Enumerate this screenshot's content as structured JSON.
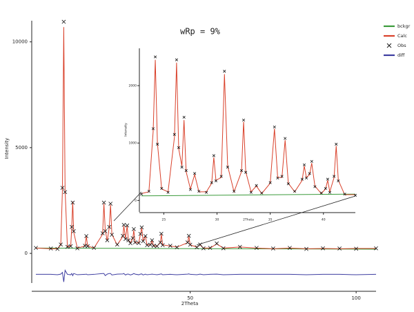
{
  "chart_data": [
    {
      "type": "line",
      "title": "wRp = 9%",
      "x_label": "2Theta",
      "y_label": "Intensity",
      "xlim": [
        3.5,
        106
      ],
      "ylim": [
        -1400,
        11000
      ],
      "xticks": [
        50,
        100
      ],
      "yticks": [
        0,
        5000,
        10000
      ],
      "legend": "upper right",
      "x": [
        3.5,
        8,
        10,
        11,
        11.5,
        11.9,
        12.3,
        13,
        14,
        14.3,
        14.6,
        14.9,
        16,
        18.3,
        18.7,
        19.1,
        21,
        23.6,
        24,
        24.4,
        25,
        25.6,
        26,
        26.4,
        28,
        29.7,
        30,
        30.5,
        31,
        31.4,
        32,
        32.7,
        33,
        33.4,
        34.5,
        35,
        35.4,
        35.8,
        36.5,
        37,
        38,
        38.5,
        39,
        40,
        41,
        41.3,
        41.7,
        44,
        46,
        49.2,
        49.6,
        50,
        52,
        53,
        54,
        56,
        58,
        60,
        65,
        70,
        75,
        80,
        85,
        90,
        95,
        100,
        106
      ],
      "series": [
        {
          "name": "bckgr",
          "color": "#3a9a3a",
          "mode": "lines",
          "x": [
            3.5,
            106
          ],
          "values": [
            250,
            200
          ]
        },
        {
          "name": "Calc",
          "color": "#d9402a",
          "mode": "lines",
          "values": [
            250,
            220,
            220,
            400,
            3000,
            10700,
            3000,
            300,
            350,
            1200,
            2450,
            1000,
            250,
            350,
            800,
            350,
            250,
            900,
            2350,
            1100,
            600,
            1200,
            2300,
            900,
            400,
            800,
            1300,
            700,
            1300,
            600,
            500,
            700,
            1100,
            500,
            500,
            900,
            1200,
            600,
            800,
            400,
            400,
            600,
            350,
            350,
            500,
            900,
            400,
            350,
            300,
            500,
            800,
            400,
            300,
            400,
            250,
            250,
            450,
            250,
            300,
            250,
            220,
            250,
            220,
            230,
            220,
            230,
            230
          ]
        },
        {
          "name": "Obs",
          "color": "#111111",
          "mode": "markers",
          "values": [
            260,
            230,
            210,
            420,
            3100,
            10950,
            2900,
            310,
            340,
            1250,
            2400,
            1050,
            240,
            360,
            820,
            340,
            260,
            950,
            2400,
            1050,
            620,
            1250,
            2350,
            880,
            420,
            830,
            1350,
            680,
            1320,
            620,
            480,
            720,
            1150,
            520,
            490,
            920,
            1230,
            580,
            820,
            390,
            410,
            620,
            360,
            340,
            520,
            930,
            390,
            360,
            290,
            520,
            830,
            410,
            290,
            420,
            240,
            260,
            470,
            240,
            310,
            260,
            230,
            260,
            210,
            240,
            230,
            220,
            240
          ]
        },
        {
          "name": "diff",
          "color": "#3c3ca0",
          "mode": "lines",
          "values": [
            -990,
            -990,
            -1010,
            -980,
            -900,
            -1350,
            -800,
            -990,
            -1010,
            -950,
            -1050,
            -950,
            -1010,
            -990,
            -980,
            -1010,
            -990,
            -950,
            -950,
            -1050,
            -980,
            -950,
            -950,
            -1020,
            -980,
            -970,
            -950,
            -1020,
            -980,
            -980,
            -1020,
            -980,
            -950,
            -980,
            -1010,
            -980,
            -970,
            -1020,
            -980,
            -1010,
            -990,
            -980,
            -990,
            -1010,
            -980,
            -970,
            -1010,
            -990,
            -1010,
            -980,
            -970,
            -990,
            -1010,
            -980,
            -1010,
            -990,
            -980,
            -1010,
            -990,
            -990,
            -990,
            -990,
            -1010,
            -990,
            -990,
            -1010,
            -990
          ]
        }
      ]
    },
    {
      "type": "line",
      "x_label": "2Theta",
      "y_label": "Intensity",
      "xlim": [
        22.9,
        43
      ],
      "ylim": [
        -200,
        2650
      ],
      "xticks": [
        25,
        30,
        35,
        40
      ],
      "yticks": [
        0,
        1000,
        2000
      ],
      "x": [
        22.9,
        23.6,
        24.0,
        24.2,
        24.4,
        24.8,
        25.4,
        26.0,
        26.2,
        26.4,
        26.7,
        26.9,
        27.1,
        27.5,
        27.9,
        28.3,
        29.0,
        29.5,
        29.7,
        29.9,
        30.4,
        30.7,
        31.0,
        31.6,
        32.3,
        32.5,
        32.7,
        33.2,
        33.7,
        34.2,
        35.0,
        35.4,
        35.7,
        36.1,
        36.4,
        36.7,
        37.3,
        38.0,
        38.2,
        38.4,
        38.7,
        38.9,
        39.2,
        39.8,
        40.2,
        40.4,
        40.6,
        41.0,
        41.2,
        41.4,
        42.0,
        43.0
      ],
      "series": [
        {
          "color": "#3a9a3a",
          "mode": "lines",
          "x": [
            22.9,
            43
          ],
          "values": [
            80,
            110
          ]
        },
        {
          "color": "#d9402a",
          "mode": "lines",
          "values": [
            120,
            150,
            1200,
            2450,
            1000,
            200,
            150,
            1100,
            2400,
            900,
            600,
            1400,
            500,
            200,
            450,
            150,
            150,
            300,
            750,
            350,
            400,
            2200,
            600,
            150,
            500,
            1370,
            500,
            150,
            250,
            120,
            300,
            1250,
            400,
            400,
            1050,
            300,
            150,
            350,
            600,
            400,
            450,
            650,
            250,
            120,
            200,
            350,
            150,
            400,
            950,
            350,
            100,
            100
          ]
        },
        {
          "color": "#111111",
          "mode": "markers",
          "values": [
            110,
            160,
            1250,
            2500,
            980,
            210,
            140,
            1150,
            2450,
            920,
            580,
            1450,
            520,
            190,
            470,
            160,
            140,
            310,
            780,
            340,
            420,
            2250,
            580,
            160,
            520,
            1400,
            490,
            140,
            260,
            130,
            310,
            1280,
            390,
            420,
            1080,
            290,
            160,
            370,
            620,
            390,
            470,
            680,
            240,
            130,
            210,
            370,
            140,
            420,
            980,
            340,
            110,
            90
          ]
        }
      ]
    }
  ]
}
